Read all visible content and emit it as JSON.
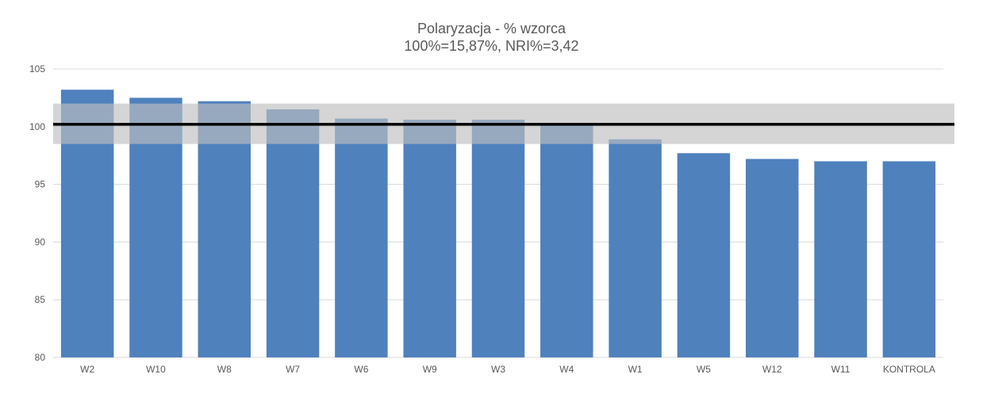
{
  "chart_data": {
    "type": "bar",
    "title": "Polaryzacja - % wzorca",
    "subtitle": "100%=15,87%, NRI%=3,42",
    "categories": [
      "W2",
      "W10",
      "W8",
      "W7",
      "W6",
      "W9",
      "W3",
      "W4",
      "W1",
      "W5",
      "W12",
      "W11",
      "KONTROLA"
    ],
    "values": [
      103.2,
      102.5,
      102.2,
      101.5,
      100.7,
      100.6,
      100.6,
      100.3,
      98.9,
      97.7,
      97.2,
      97.0,
      97.0
    ],
    "ylim": [
      80,
      105
    ],
    "yticks": [
      80,
      85,
      90,
      95,
      100,
      105
    ],
    "reference_line": 100.2,
    "band": [
      98.5,
      102.0
    ],
    "xlabel": "",
    "ylabel": "",
    "grid": true,
    "colors": {
      "bar": "#4f81bd",
      "band": "#bfbfbf",
      "reference_line": "#000000",
      "grid": "#d9d9d9",
      "text": "#595959"
    }
  }
}
